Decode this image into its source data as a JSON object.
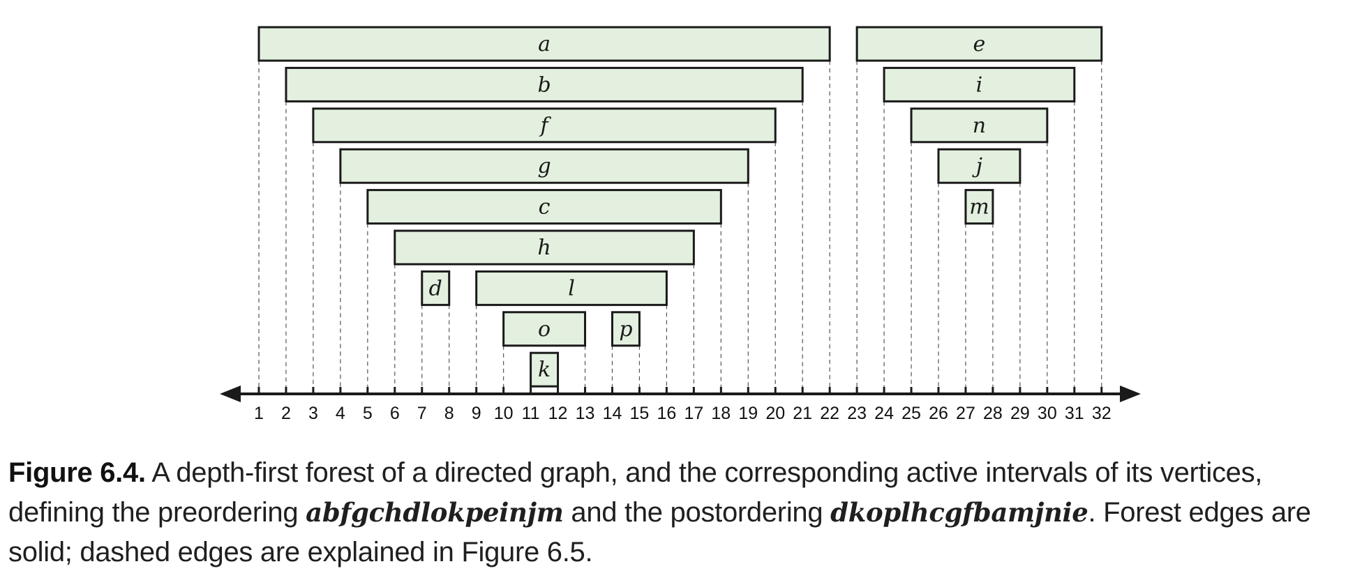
{
  "axis": {
    "ticks": [
      1,
      2,
      3,
      4,
      5,
      6,
      7,
      8,
      9,
      10,
      11,
      12,
      13,
      14,
      15,
      16,
      17,
      18,
      19,
      20,
      21,
      22,
      23,
      24,
      25,
      26,
      27,
      28,
      29,
      30,
      31,
      32
    ]
  },
  "intervals": [
    {
      "label": "a",
      "start": 1,
      "end": 22,
      "depth": 0
    },
    {
      "label": "b",
      "start": 2,
      "end": 21,
      "depth": 1
    },
    {
      "label": "f",
      "start": 3,
      "end": 20,
      "depth": 2
    },
    {
      "label": "g",
      "start": 4,
      "end": 19,
      "depth": 3
    },
    {
      "label": "c",
      "start": 5,
      "end": 18,
      "depth": 4
    },
    {
      "label": "h",
      "start": 6,
      "end": 17,
      "depth": 5
    },
    {
      "label": "d",
      "start": 7,
      "end": 8,
      "depth": 6
    },
    {
      "label": "l",
      "start": 9,
      "end": 16,
      "depth": 6
    },
    {
      "label": "o",
      "start": 10,
      "end": 13,
      "depth": 7
    },
    {
      "label": "k",
      "start": 11,
      "end": 12,
      "depth": 8
    },
    {
      "label": "p",
      "start": 14,
      "end": 15,
      "depth": 7
    },
    {
      "label": "e",
      "start": 23,
      "end": 32,
      "depth": 0
    },
    {
      "label": "i",
      "start": 24,
      "end": 31,
      "depth": 1
    },
    {
      "label": "n",
      "start": 25,
      "end": 30,
      "depth": 2
    },
    {
      "label": "j",
      "start": 26,
      "end": 29,
      "depth": 3
    },
    {
      "label": "m",
      "start": 27,
      "end": 28,
      "depth": 4
    }
  ],
  "colors": {
    "interval_fill": "#e3f0df",
    "interval_stroke": "#1a1a1a"
  },
  "caption": {
    "figure_number": "Figure 6.4.",
    "text_part1": " A depth-first forest of a directed graph, and the corresponding active intervals of its vertices, defining the preordering ",
    "preorder": "abfgchdlokpeinjm",
    "text_part2": " and the postordering ",
    "postorder": "dkoplhcgfbamjnie",
    "text_part3": ". Forest edges are solid; dashed edges are explained in Figure 6.5."
  }
}
